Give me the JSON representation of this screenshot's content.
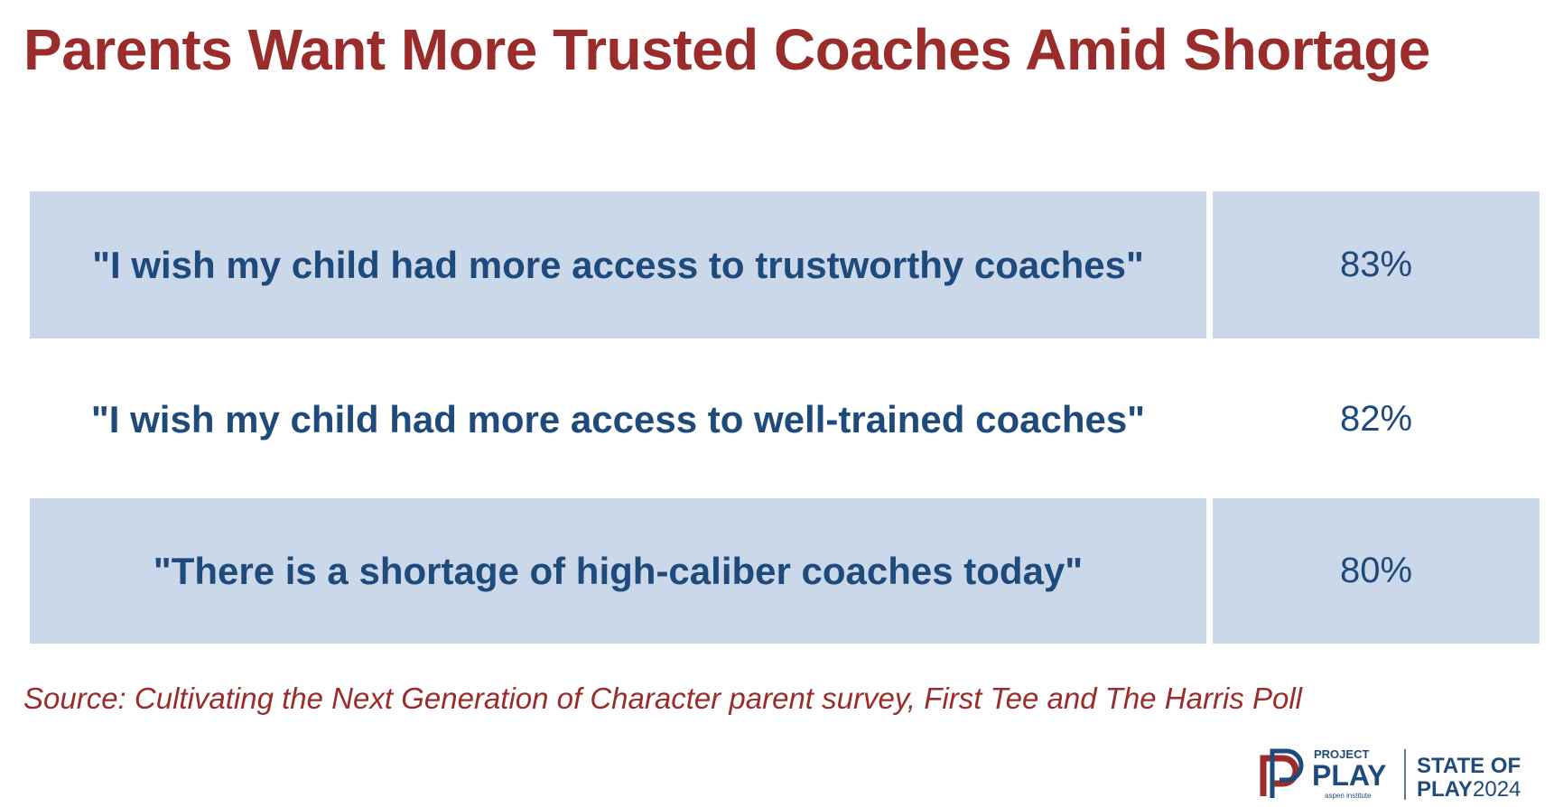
{
  "header": {
    "title": "Parents Want More Trusted Coaches Amid Shortage"
  },
  "table": {
    "rows": [
      [
        "\"I wish my child had more access to trustworthy coaches\"",
        "83%"
      ],
      [
        "\"I wish my child had more access to well-trained coaches\"",
        "82%"
      ],
      [
        "\"There is a shortage of high-caliber coaches today\"",
        "80%"
      ]
    ]
  },
  "source": "Source: Cultivating the Next Generation of Character parent survey, First Tee and The Harris Poll",
  "logo": {
    "project": "PROJECT",
    "play": "PLAY",
    "aspen": "aspen institute",
    "state_of": "STATE OF",
    "state_play": "PLAY",
    "year": "2024"
  }
}
